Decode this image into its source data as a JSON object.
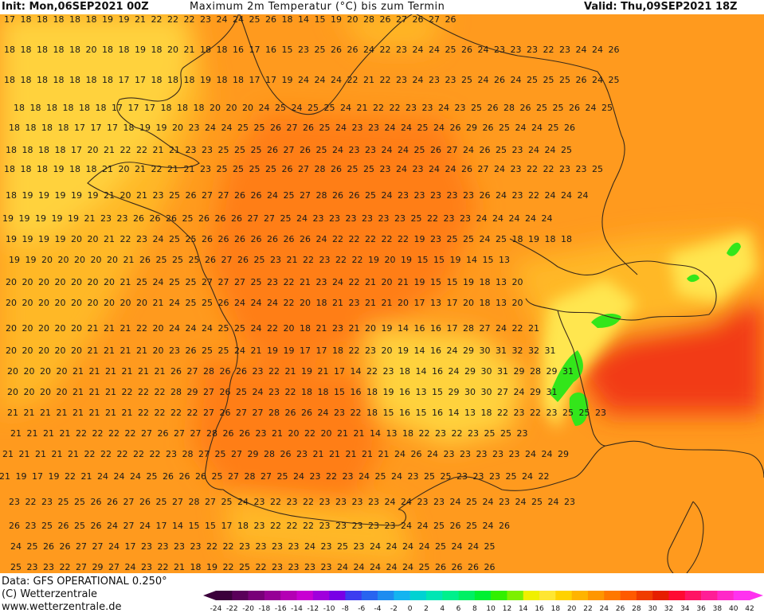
{
  "header": {
    "init": "Init: Mon,06SEP2021 00Z",
    "title": "Maximum 2m Temperatur (°C) bis zum Termin",
    "valid": "Valid: Thu,09SEP2021 18Z"
  },
  "footer": {
    "source": "Data: GFS OPERATIONAL 0.250°",
    "copyright": "(C) Wetterzentrale",
    "url": "www.wetterzentrale.de"
  },
  "colorbar": {
    "ticks": [
      "-24",
      "-22",
      "-20",
      "-18",
      "-16",
      "-14",
      "-12",
      "-10",
      "-8",
      "-6",
      "-4",
      "-2",
      "0",
      "2",
      "4",
      "6",
      "8",
      "10",
      "12",
      "14",
      "16",
      "18",
      "20",
      "22",
      "24",
      "26",
      "28",
      "30",
      "32",
      "34",
      "36",
      "38",
      "40",
      "42"
    ],
    "colors": [
      "#3b003b",
      "#5a005a",
      "#780078",
      "#960096",
      "#b400b4",
      "#c800d2",
      "#a000dc",
      "#7800e6",
      "#3c3cf0",
      "#2864f0",
      "#1e8cf0",
      "#14b4f0",
      "#00d2d2",
      "#00e6b4",
      "#00f08c",
      "#00f064",
      "#00f032",
      "#32f000",
      "#7df000",
      "#f0f000",
      "#ffe632",
      "#ffd200",
      "#ffb400",
      "#ff9600",
      "#ff7800",
      "#ff5a00",
      "#f03c00",
      "#e61e00",
      "#ff0a32",
      "#ff1464",
      "#ff1e96",
      "#ff28c8",
      "#ff32f0"
    ]
  },
  "colors": {
    "base": "#ff9a1e",
    "warm": "#ff7e12",
    "hot": "#ff6000",
    "veryhot": "#f23a14",
    "cool": "#ffb828",
    "cooler": "#ffd23c",
    "mild": "#ffe650",
    "green": "#33e61a",
    "border": "#3a2a1a"
  },
  "map_rows": [
    {
      "y": 24,
      "x0": 12,
      "dx": 20.5,
      "vals": [
        "17",
        "18",
        "18",
        "18",
        "18",
        "18",
        "19",
        "19",
        "21",
        "22",
        "22",
        "22",
        "23",
        "24",
        "24",
        "25",
        "26",
        "18",
        "14",
        "15",
        "19",
        "20",
        "28",
        "26",
        "27",
        "26",
        "27",
        "26"
      ]
    },
    {
      "y": 62,
      "x0": 12,
      "dx": 20.5,
      "vals": [
        "18",
        "18",
        "18",
        "18",
        "18",
        "20",
        "18",
        "18",
        "19",
        "18",
        "20",
        "21",
        "18",
        "18",
        "16",
        "17",
        "16",
        "15",
        "23",
        "25",
        "26",
        "26",
        "24",
        "22",
        "23",
        "24",
        "24",
        "25",
        "26",
        "24",
        "23",
        "23",
        "23",
        "22",
        "23",
        "24",
        "24",
        "26"
      ]
    },
    {
      "y": 100,
      "x0": 12,
      "dx": 20.5,
      "vals": [
        "18",
        "18",
        "18",
        "18",
        "18",
        "18",
        "18",
        "17",
        "17",
        "18",
        "18",
        "18",
        "19",
        "18",
        "18",
        "17",
        "17",
        "19",
        "24",
        "24",
        "24",
        "22",
        "21",
        "22",
        "23",
        "24",
        "23",
        "23",
        "25",
        "24",
        "26",
        "24",
        "25",
        "25",
        "25",
        "26",
        "24",
        "25"
      ]
    },
    {
      "y": 135,
      "x0": 24,
      "dx": 20.5,
      "vals": [
        "18",
        "18",
        "18",
        "18",
        "18",
        "18",
        "17",
        "17",
        "17",
        "18",
        "18",
        "18",
        "20",
        "20",
        "20",
        "24",
        "25",
        "24",
        "25",
        "25",
        "24",
        "21",
        "22",
        "22",
        "23",
        "23",
        "24",
        "23",
        "25",
        "26",
        "28",
        "26",
        "25",
        "25",
        "26",
        "24",
        "25"
      ]
    },
    {
      "y": 160,
      "x0": 18,
      "dx": 20.5,
      "vals": [
        "18",
        "18",
        "18",
        "18",
        "17",
        "17",
        "17",
        "18",
        "19",
        "19",
        "20",
        "23",
        "24",
        "24",
        "25",
        "25",
        "26",
        "27",
        "26",
        "25",
        "24",
        "23",
        "23",
        "24",
        "24",
        "25",
        "24",
        "26",
        "29",
        "26",
        "25",
        "24",
        "24",
        "25",
        "26"
      ]
    },
    {
      "y": 188,
      "x0": 14,
      "dx": 20.5,
      "vals": [
        "18",
        "18",
        "18",
        "18",
        "17",
        "20",
        "21",
        "22",
        "22",
        "21",
        "21",
        "23",
        "23",
        "25",
        "25",
        "25",
        "26",
        "27",
        "26",
        "25",
        "24",
        "23",
        "23",
        "24",
        "24",
        "25",
        "26",
        "27",
        "24",
        "26",
        "25",
        "23",
        "24",
        "24",
        "25"
      ]
    },
    {
      "y": 212,
      "x0": 12,
      "dx": 20.5,
      "vals": [
        "18",
        "18",
        "18",
        "19",
        "18",
        "18",
        "21",
        "20",
        "21",
        "22",
        "21",
        "21",
        "23",
        "25",
        "25",
        "25",
        "25",
        "26",
        "27",
        "28",
        "26",
        "25",
        "25",
        "23",
        "24",
        "23",
        "24",
        "24",
        "26",
        "27",
        "24",
        "23",
        "22",
        "22",
        "23",
        "23",
        "25"
      ]
    },
    {
      "y": 245,
      "x0": 14,
      "dx": 20.5,
      "vals": [
        "18",
        "19",
        "19",
        "19",
        "19",
        "19",
        "21",
        "20",
        "21",
        "23",
        "25",
        "26",
        "27",
        "27",
        "26",
        "26",
        "24",
        "25",
        "27",
        "28",
        "26",
        "26",
        "25",
        "24",
        "23",
        "23",
        "23",
        "23",
        "23",
        "26",
        "24",
        "23",
        "22",
        "24",
        "24",
        "24"
      ]
    },
    {
      "y": 274,
      "x0": 10,
      "dx": 20.5,
      "vals": [
        "19",
        "19",
        "19",
        "19",
        "19",
        "21",
        "23",
        "23",
        "26",
        "26",
        "26",
        "25",
        "26",
        "26",
        "26",
        "27",
        "27",
        "25",
        "24",
        "23",
        "23",
        "23",
        "23",
        "23",
        "23",
        "25",
        "22",
        "23",
        "23",
        "24",
        "24",
        "24",
        "24",
        "24"
      ]
    },
    {
      "y": 300,
      "x0": 14,
      "dx": 20.5,
      "vals": [
        "19",
        "19",
        "19",
        "19",
        "20",
        "20",
        "21",
        "22",
        "23",
        "24",
        "25",
        "25",
        "26",
        "26",
        "26",
        "26",
        "26",
        "26",
        "26",
        "24",
        "22",
        "22",
        "22",
        "22",
        "22",
        "19",
        "23",
        "25",
        "25",
        "24",
        "25",
        "18",
        "19",
        "18",
        "18"
      ]
    },
    {
      "y": 326,
      "x0": 18,
      "dx": 20.5,
      "vals": [
        "19",
        "19",
        "20",
        "20",
        "20",
        "20",
        "20",
        "21",
        "26",
        "25",
        "25",
        "25",
        "26",
        "27",
        "26",
        "25",
        "23",
        "21",
        "22",
        "23",
        "22",
        "22",
        "19",
        "20",
        "19",
        "15",
        "15",
        "19",
        "14",
        "15",
        "13"
      ]
    },
    {
      "y": 354,
      "x0": 14,
      "dx": 20.5,
      "vals": [
        "20",
        "20",
        "20",
        "20",
        "20",
        "20",
        "20",
        "21",
        "25",
        "24",
        "25",
        "25",
        "27",
        "27",
        "27",
        "25",
        "23",
        "22",
        "21",
        "23",
        "24",
        "22",
        "21",
        "20",
        "21",
        "19",
        "15",
        "15",
        "19",
        "18",
        "13",
        "20"
      ]
    },
    {
      "y": 380,
      "x0": 14,
      "dx": 20.5,
      "vals": [
        "20",
        "20",
        "20",
        "20",
        "20",
        "20",
        "20",
        "20",
        "20",
        "21",
        "24",
        "25",
        "25",
        "26",
        "24",
        "24",
        "24",
        "22",
        "20",
        "18",
        "21",
        "23",
        "21",
        "21",
        "20",
        "17",
        "13",
        "17",
        "20",
        "18",
        "13",
        "20"
      ]
    },
    {
      "y": 412,
      "x0": 14,
      "dx": 20.5,
      "vals": [
        "20",
        "20",
        "20",
        "20",
        "20",
        "21",
        "21",
        "21",
        "22",
        "20",
        "24",
        "24",
        "24",
        "25",
        "25",
        "24",
        "22",
        "20",
        "18",
        "21",
        "23",
        "21",
        "20",
        "19",
        "14",
        "16",
        "16",
        "17",
        "28",
        "27",
        "24",
        "22",
        "21"
      ]
    },
    {
      "y": 440,
      "x0": 14,
      "dx": 20.5,
      "vals": [
        "20",
        "20",
        "20",
        "20",
        "20",
        "21",
        "21",
        "21",
        "21",
        "20",
        "23",
        "26",
        "25",
        "25",
        "24",
        "21",
        "19",
        "19",
        "17",
        "17",
        "18",
        "22",
        "23",
        "20",
        "19",
        "14",
        "16",
        "24",
        "29",
        "30",
        "31",
        "32",
        "32",
        "31"
      ]
    },
    {
      "y": 466,
      "x0": 16,
      "dx": 20.5,
      "vals": [
        "20",
        "20",
        "20",
        "20",
        "21",
        "21",
        "21",
        "21",
        "21",
        "21",
        "26",
        "27",
        "28",
        "26",
        "26",
        "23",
        "22",
        "21",
        "19",
        "21",
        "17",
        "14",
        "22",
        "23",
        "18",
        "14",
        "16",
        "24",
        "29",
        "30",
        "31",
        "29",
        "28",
        "29",
        "31"
      ]
    },
    {
      "y": 492,
      "x0": 16,
      "dx": 20.5,
      "vals": [
        "20",
        "20",
        "20",
        "20",
        "21",
        "21",
        "21",
        "22",
        "22",
        "22",
        "28",
        "29",
        "27",
        "26",
        "25",
        "24",
        "23",
        "22",
        "18",
        "18",
        "15",
        "16",
        "18",
        "19",
        "16",
        "13",
        "15",
        "29",
        "30",
        "30",
        "27",
        "24",
        "29",
        "31"
      ]
    },
    {
      "y": 518,
      "x0": 16,
      "dx": 20.5,
      "vals": [
        "21",
        "21",
        "21",
        "21",
        "21",
        "21",
        "21",
        "21",
        "22",
        "22",
        "22",
        "22",
        "27",
        "26",
        "27",
        "27",
        "28",
        "26",
        "26",
        "24",
        "23",
        "22",
        "18",
        "15",
        "16",
        "15",
        "16",
        "14",
        "13",
        "18",
        "22",
        "23",
        "22",
        "23",
        "25",
        "25",
        "23"
      ]
    },
    {
      "y": 544,
      "x0": 20,
      "dx": 20.5,
      "vals": [
        "21",
        "21",
        "21",
        "21",
        "22",
        "22",
        "22",
        "22",
        "27",
        "26",
        "27",
        "27",
        "28",
        "26",
        "26",
        "23",
        "21",
        "20",
        "22",
        "20",
        "21",
        "21",
        "14",
        "13",
        "18",
        "22",
        "23",
        "22",
        "23",
        "25",
        "25",
        "23"
      ]
    },
    {
      "y": 570,
      "x0": 10,
      "dx": 20.5,
      "vals": [
        "21",
        "21",
        "21",
        "21",
        "21",
        "22",
        "22",
        "22",
        "22",
        "22",
        "23",
        "28",
        "27",
        "25",
        "27",
        "29",
        "28",
        "26",
        "23",
        "21",
        "21",
        "21",
        "21",
        "21",
        "24",
        "26",
        "24",
        "23",
        "23",
        "23",
        "23",
        "23",
        "24",
        "24",
        "29"
      ]
    },
    {
      "y": 598,
      "x0": 6,
      "dx": 20.5,
      "vals": [
        "21",
        "19",
        "17",
        "19",
        "22",
        "21",
        "24",
        "24",
        "24",
        "25",
        "26",
        "26",
        "26",
        "25",
        "27",
        "28",
        "27",
        "25",
        "24",
        "23",
        "22",
        "23",
        "24",
        "25",
        "24",
        "23",
        "25",
        "25",
        "23",
        "23",
        "23",
        "25",
        "24",
        "22"
      ]
    },
    {
      "y": 630,
      "x0": 18,
      "dx": 20.5,
      "vals": [
        "23",
        "22",
        "23",
        "25",
        "25",
        "26",
        "26",
        "27",
        "26",
        "25",
        "27",
        "28",
        "27",
        "25",
        "24",
        "23",
        "22",
        "23",
        "22",
        "23",
        "23",
        "23",
        "23",
        "24",
        "24",
        "23",
        "23",
        "24",
        "25",
        "24",
        "23",
        "24",
        "25",
        "24",
        "23"
      ]
    },
    {
      "y": 660,
      "x0": 18,
      "dx": 20.5,
      "vals": [
        "26",
        "23",
        "25",
        "26",
        "25",
        "26",
        "24",
        "27",
        "24",
        "17",
        "14",
        "15",
        "15",
        "17",
        "18",
        "23",
        "22",
        "22",
        "22",
        "23",
        "23",
        "23",
        "23",
        "23",
        "24",
        "24",
        "25",
        "26",
        "25",
        "24",
        "26"
      ]
    },
    {
      "y": 686,
      "x0": 20,
      "dx": 20.5,
      "vals": [
        "24",
        "25",
        "26",
        "26",
        "27",
        "27",
        "24",
        "17",
        "23",
        "23",
        "23",
        "23",
        "22",
        "22",
        "23",
        "23",
        "23",
        "23",
        "24",
        "23",
        "25",
        "23",
        "24",
        "24",
        "24",
        "24",
        "25",
        "24",
        "24",
        "25"
      ]
    },
    {
      "y": 712,
      "x0": 20,
      "dx": 20.5,
      "vals": [
        "25",
        "23",
        "23",
        "22",
        "27",
        "29",
        "27",
        "24",
        "23",
        "22",
        "21",
        "18",
        "19",
        "22",
        "25",
        "22",
        "23",
        "23",
        "23",
        "23",
        "24",
        "24",
        "24",
        "24",
        "24",
        "25",
        "26",
        "26",
        "26",
        "26"
      ]
    }
  ]
}
